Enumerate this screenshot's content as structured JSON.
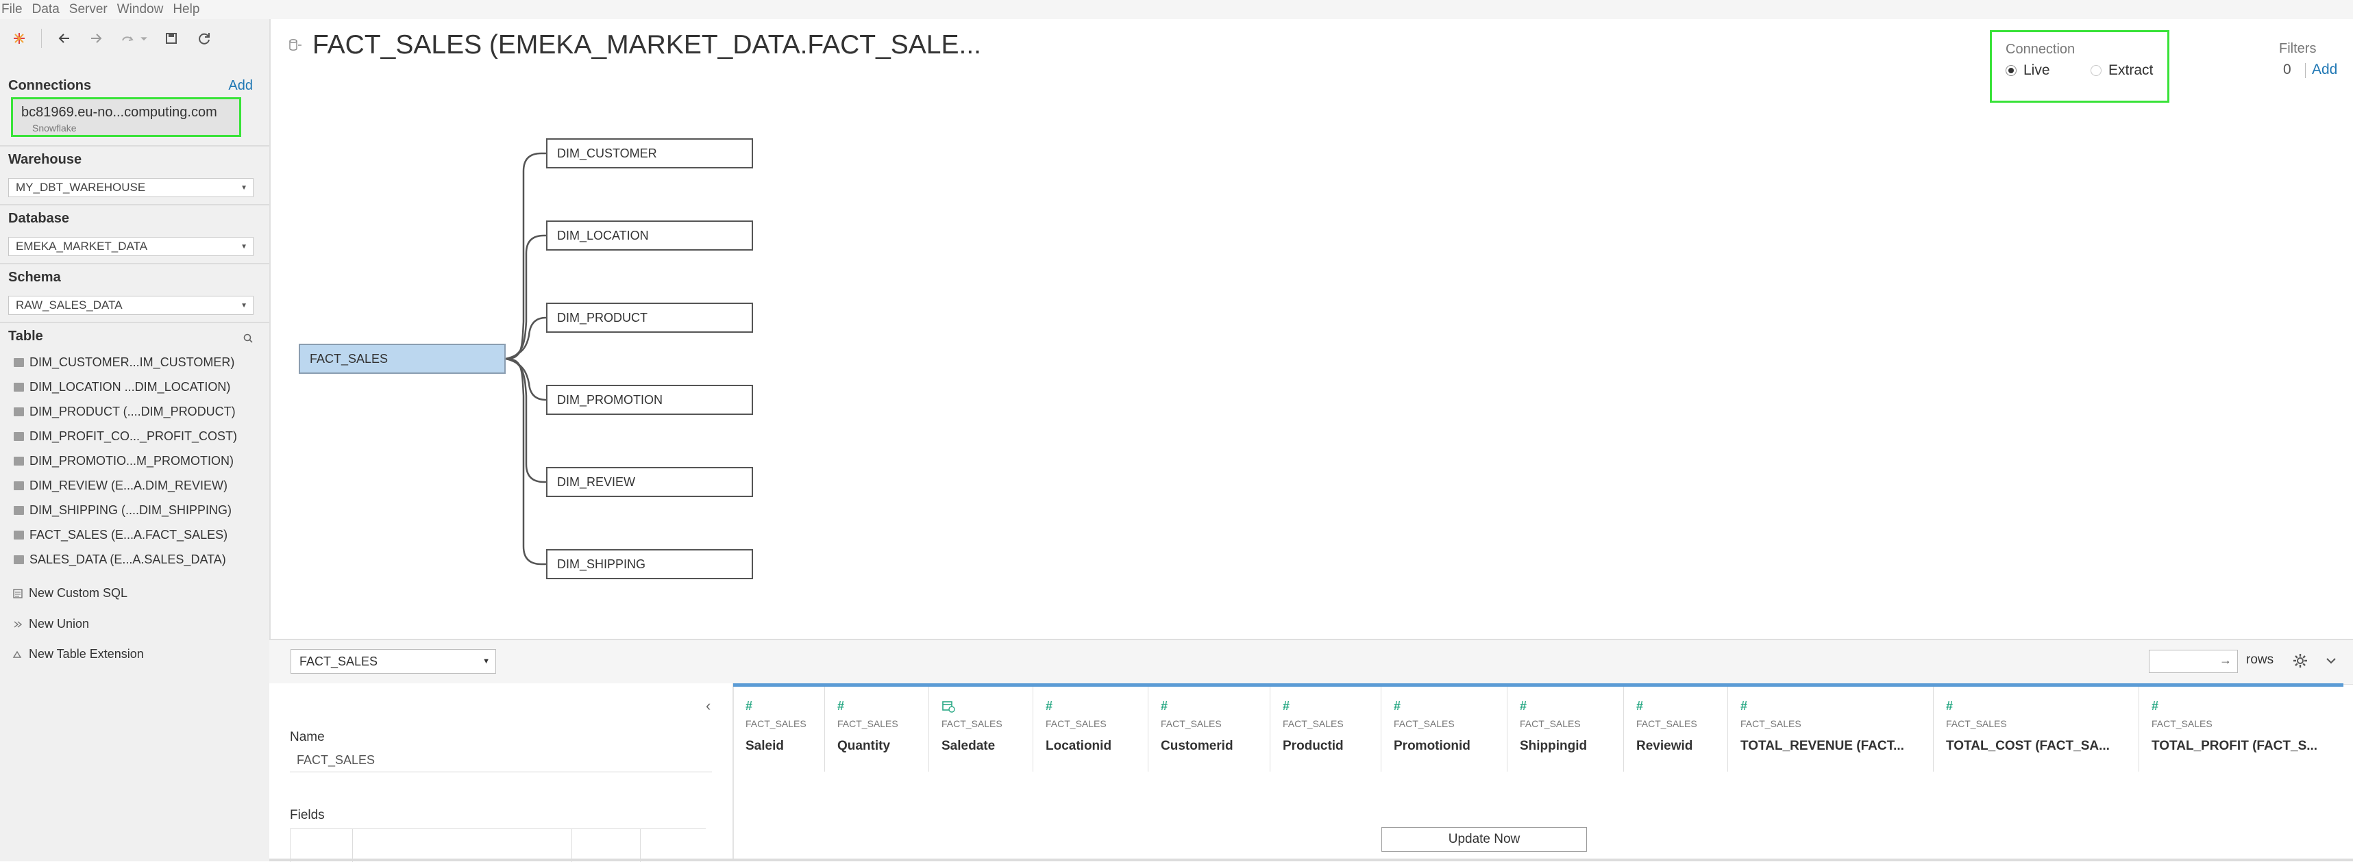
{
  "menubar": {
    "items": [
      "File",
      "Data",
      "Server",
      "Window",
      "Help"
    ]
  },
  "left_pane": {
    "connections": {
      "heading": "Connections",
      "add_label": "Add",
      "current": {
        "host": "bc81969.eu-no...computing.com",
        "type": "Snowflake"
      }
    },
    "warehouse": {
      "heading": "Warehouse",
      "value": "MY_DBT_WAREHOUSE"
    },
    "database": {
      "heading": "Database",
      "value": "EMEKA_MARKET_DATA"
    },
    "schema": {
      "heading": "Schema",
      "value": "RAW_SALES_DATA"
    },
    "table": {
      "heading": "Table",
      "items": [
        "DIM_CUSTOMER...IM_CUSTOMER)",
        "DIM_LOCATION ...DIM_LOCATION)",
        "DIM_PRODUCT (....DIM_PRODUCT)",
        "DIM_PROFIT_CO..._PROFIT_COST)",
        "DIM_PROMOTIO...M_PROMOTION)",
        "DIM_REVIEW (E...A.DIM_REVIEW)",
        "DIM_SHIPPING (....DIM_SHIPPING)",
        "FACT_SALES (E...A.FACT_SALES)",
        "SALES_DATA (E...A.SALES_DATA)"
      ]
    },
    "actions": [
      "New Custom SQL",
      "New Union",
      "New Table Extension"
    ]
  },
  "canvas": {
    "title": "FACT_SALES (EMEKA_MARKET_DATA.FACT_SALE...",
    "connection": {
      "label": "Connection",
      "live": "Live",
      "extract": "Extract",
      "selected": "Live"
    },
    "filters": {
      "label": "Filters",
      "count": "0",
      "add": "Add"
    },
    "root_table": "FACT_SALES",
    "joined_tables": [
      "DIM_CUSTOMER",
      "DIM_LOCATION",
      "DIM_PRODUCT",
      "DIM_PROMOTION",
      "DIM_REVIEW",
      "DIM_SHIPPING"
    ]
  },
  "bottom": {
    "table_select": "FACT_SALES",
    "rows_label": "rows",
    "rows_value": "",
    "meta": {
      "name_label": "Name",
      "name_value": "FACT_SALES",
      "fields_label": "Fields"
    },
    "columns": [
      {
        "type": "number",
        "source": "FACT_SALES",
        "name": "Saleid"
      },
      {
        "type": "number",
        "source": "FACT_SALES",
        "name": "Quantity"
      },
      {
        "type": "date",
        "source": "FACT_SALES",
        "name": "Saledate"
      },
      {
        "type": "number",
        "source": "FACT_SALES",
        "name": "Locationid"
      },
      {
        "type": "number",
        "source": "FACT_SALES",
        "name": "Customerid"
      },
      {
        "type": "number",
        "source": "FACT_SALES",
        "name": "Productid"
      },
      {
        "type": "number",
        "source": "FACT_SALES",
        "name": "Promotionid"
      },
      {
        "type": "number",
        "source": "FACT_SALES",
        "name": "Shippingid"
      },
      {
        "type": "number",
        "source": "FACT_SALES",
        "name": "Reviewid"
      },
      {
        "type": "number",
        "source": "FACT_SALES",
        "name": "TOTAL_REVENUE (FACT..."
      },
      {
        "type": "number",
        "source": "FACT_SALES",
        "name": "TOTAL_COST (FACT_SA..."
      },
      {
        "type": "number",
        "source": "FACT_SALES",
        "name": "TOTAL_PROFIT (FACT_S..."
      }
    ],
    "update_now": "Update Now"
  },
  "colors": {
    "accent": "#1f77b4",
    "highlight": "#39e339",
    "root_table_fill": "#bcd7ef",
    "column_type": "#2aa985"
  }
}
